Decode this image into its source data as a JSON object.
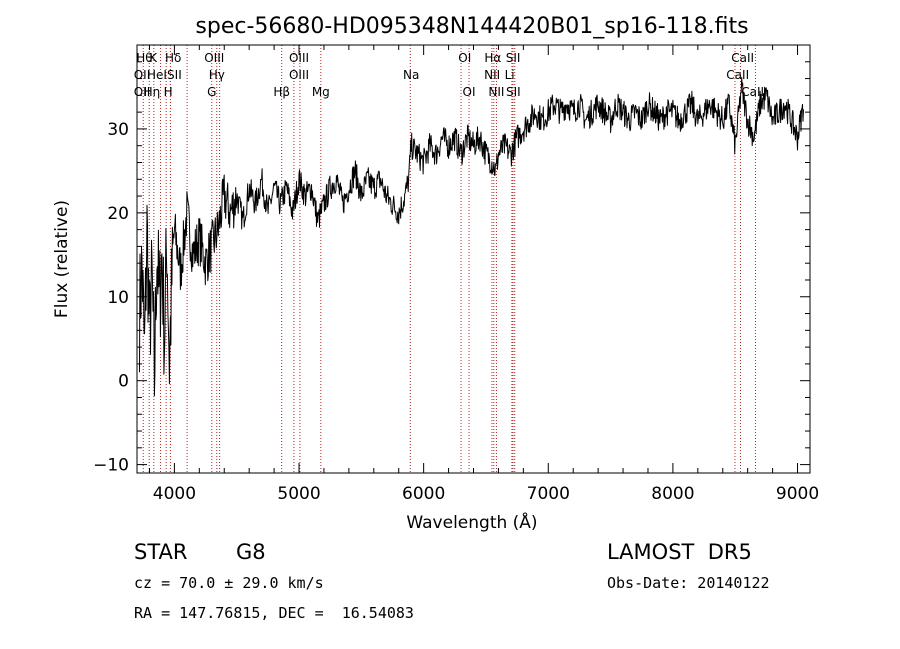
{
  "chart_data": {
    "type": "line",
    "title": "spec-56680-HD095348N144420B01_sp16-118.fits",
    "xlabel": "Wavelength (Å)",
    "ylabel": "Flux (relative)",
    "xlim": [
      3700,
      9100
    ],
    "ylim": [
      -11,
      40
    ],
    "x_ticks": [
      4000,
      5000,
      6000,
      7000,
      8000,
      9000
    ],
    "y_ticks": [
      -10,
      0,
      10,
      20,
      30
    ],
    "grid": false,
    "series": [
      {
        "color": "#000000",
        "points": [
          [
            3720,
            8
          ],
          [
            3740,
            14
          ],
          [
            3760,
            3
          ],
          [
            3780,
            18
          ],
          [
            3800,
            6
          ],
          [
            3820,
            12
          ],
          [
            3840,
            0
          ],
          [
            3860,
            16
          ],
          [
            3880,
            9
          ],
          [
            3900,
            15
          ],
          [
            3920,
            5
          ],
          [
            3940,
            17
          ],
          [
            3960,
            2
          ],
          [
            3980,
            12
          ],
          [
            4000,
            18
          ],
          [
            4050,
            13
          ],
          [
            4100,
            20
          ],
          [
            4150,
            15
          ],
          [
            4200,
            17
          ],
          [
            4250,
            14
          ],
          [
            4300,
            16
          ],
          [
            4350,
            18
          ],
          [
            4400,
            22
          ],
          [
            4450,
            20
          ],
          [
            4500,
            22
          ],
          [
            4550,
            19
          ],
          [
            4600,
            23
          ],
          [
            4650,
            21
          ],
          [
            4700,
            24
          ],
          [
            4750,
            20
          ],
          [
            4800,
            23
          ],
          [
            4850,
            21
          ],
          [
            4900,
            23
          ],
          [
            4950,
            20
          ],
          [
            5000,
            24
          ],
          [
            5050,
            22
          ],
          [
            5100,
            23
          ],
          [
            5150,
            19
          ],
          [
            5200,
            21
          ],
          [
            5250,
            23
          ],
          [
            5300,
            24
          ],
          [
            5350,
            21
          ],
          [
            5400,
            23
          ],
          [
            5450,
            25
          ],
          [
            5500,
            22
          ],
          [
            5550,
            24
          ],
          [
            5600,
            23
          ],
          [
            5650,
            24
          ],
          [
            5700,
            22
          ],
          [
            5750,
            21
          ],
          [
            5800,
            20
          ],
          [
            5850,
            22
          ],
          [
            5880,
            24
          ],
          [
            5900,
            28
          ],
          [
            5950,
            27
          ],
          [
            6000,
            26
          ],
          [
            6050,
            28
          ],
          [
            6100,
            27
          ],
          [
            6150,
            29
          ],
          [
            6200,
            28
          ],
          [
            6250,
            29
          ],
          [
            6300,
            27
          ],
          [
            6350,
            29
          ],
          [
            6400,
            28
          ],
          [
            6450,
            29
          ],
          [
            6500,
            27
          ],
          [
            6550,
            26
          ],
          [
            6580,
            25
          ],
          [
            6600,
            27
          ],
          [
            6650,
            28
          ],
          [
            6700,
            27
          ],
          [
            6750,
            29
          ],
          [
            6800,
            30
          ],
          [
            6850,
            31
          ],
          [
            6900,
            32
          ],
          [
            6950,
            31
          ],
          [
            7000,
            32
          ],
          [
            7050,
            33
          ],
          [
            7100,
            32
          ],
          [
            7150,
            33
          ],
          [
            7200,
            32
          ],
          [
            7250,
            33
          ],
          [
            7300,
            31
          ],
          [
            7350,
            32
          ],
          [
            7400,
            33
          ],
          [
            7450,
            32
          ],
          [
            7500,
            31
          ],
          [
            7550,
            33
          ],
          [
            7600,
            32
          ],
          [
            7650,
            31
          ],
          [
            7700,
            32
          ],
          [
            7750,
            31
          ],
          [
            7800,
            33
          ],
          [
            7850,
            32
          ],
          [
            7900,
            31
          ],
          [
            7950,
            32
          ],
          [
            8000,
            32
          ],
          [
            8050,
            31
          ],
          [
            8100,
            32
          ],
          [
            8150,
            33
          ],
          [
            8200,
            31
          ],
          [
            8250,
            32
          ],
          [
            8300,
            33
          ],
          [
            8350,
            32
          ],
          [
            8400,
            31
          ],
          [
            8450,
            33
          ],
          [
            8500,
            28
          ],
          [
            8530,
            32
          ],
          [
            8550,
            35
          ],
          [
            8600,
            31
          ],
          [
            8650,
            29
          ],
          [
            8700,
            33
          ],
          [
            8750,
            34
          ],
          [
            8800,
            31
          ],
          [
            8850,
            32
          ],
          [
            8900,
            33
          ],
          [
            8950,
            31
          ],
          [
            9000,
            29
          ],
          [
            9050,
            33
          ]
        ]
      }
    ],
    "lines": [
      {
        "wavelengths": [
          3750,
          3798,
          3835,
          3889,
          3934,
          3968,
          4102,
          4300,
          4340,
          4363,
          4861,
          4959,
          5007,
          5175,
          5893,
          6300,
          6364,
          6548,
          6563,
          6584,
          6708,
          6717,
          6731,
          8498,
          8542,
          8662
        ],
        "color": "#b22222"
      }
    ],
    "annotations": [
      {
        "x": 3760,
        "row": 0,
        "text": "Hθ"
      },
      {
        "x": 3830,
        "row": 0,
        "text": "K"
      },
      {
        "x": 3990,
        "row": 0,
        "text": "Hδ"
      },
      {
        "x": 4320,
        "row": 0,
        "text": "OIII"
      },
      {
        "x": 5000,
        "row": 0,
        "text": "OIII"
      },
      {
        "x": 6330,
        "row": 0,
        "text": "OI"
      },
      {
        "x": 6555,
        "row": 0,
        "text": "Hα"
      },
      {
        "x": 6718,
        "row": 0,
        "text": "SII"
      },
      {
        "x": 8560,
        "row": 0,
        "text": "CaII"
      },
      {
        "x": 3740,
        "row": 1,
        "text": "OII"
      },
      {
        "x": 3860,
        "row": 1,
        "text": "HeI"
      },
      {
        "x": 4000,
        "row": 1,
        "text": "SII"
      },
      {
        "x": 4340,
        "row": 1,
        "text": "Hγ"
      },
      {
        "x": 5000,
        "row": 1,
        "text": "OIII"
      },
      {
        "x": 5900,
        "row": 1,
        "text": "Na"
      },
      {
        "x": 6550,
        "row": 1,
        "text": "NII"
      },
      {
        "x": 6690,
        "row": 1,
        "text": "Li"
      },
      {
        "x": 8520,
        "row": 1,
        "text": "CaII"
      },
      {
        "x": 3740,
        "row": 2,
        "text": "OII"
      },
      {
        "x": 3820,
        "row": 2,
        "text": "Hη"
      },
      {
        "x": 3950,
        "row": 2,
        "text": "H"
      },
      {
        "x": 4300,
        "row": 2,
        "text": "G"
      },
      {
        "x": 4861,
        "row": 2,
        "text": "Hβ"
      },
      {
        "x": 5175,
        "row": 2,
        "text": "Mg"
      },
      {
        "x": 6364,
        "row": 2,
        "text": "OI"
      },
      {
        "x": 6584,
        "row": 2,
        "text": "NII"
      },
      {
        "x": 6720,
        "row": 2,
        "text": "SII"
      },
      {
        "x": 8640,
        "row": 2,
        "text": "CaII"
      }
    ]
  },
  "info": {
    "class_label": "STAR",
    "subclass": "G8",
    "survey": "LAMOST  DR5",
    "cz": "cz = 70.0 ± 29.0 km/s",
    "obs_date": "Obs-Date: 20140122",
    "radec": "RA = 147.76815, DEC =  16.54083"
  }
}
